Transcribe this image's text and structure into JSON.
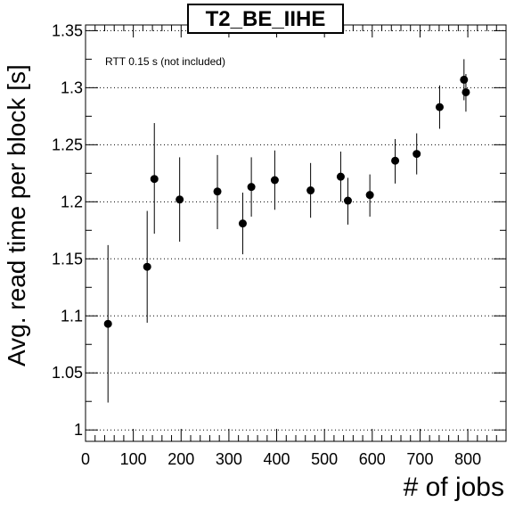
{
  "chart_data": {
    "type": "scatter",
    "title": "T2_BE_IIHE",
    "annotation": "RTT 0.15 s (not included)",
    "xlabel": "# of jobs",
    "ylabel": "Avg. read time per block [s]",
    "xlim": [
      0,
      880
    ],
    "ylim": [
      0.99,
      1.355
    ],
    "x_ticks": [
      0,
      100,
      200,
      300,
      400,
      500,
      600,
      700,
      800
    ],
    "y_ticks": [
      1,
      1.05,
      1.1,
      1.15,
      1.2,
      1.25,
      1.3,
      1.35
    ],
    "grid": "horizontal-dotted",
    "legend": "none",
    "marker_color": "#000000",
    "series": [
      {
        "points": [
          {
            "x": 47,
            "y": 1.093,
            "ylow": 1.024,
            "yhigh": 1.162
          },
          {
            "x": 129,
            "y": 1.143,
            "ylow": 1.094,
            "yhigh": 1.192
          },
          {
            "x": 144,
            "y": 1.22,
            "ylow": 1.172,
            "yhigh": 1.269
          },
          {
            "x": 197,
            "y": 1.202,
            "ylow": 1.165,
            "yhigh": 1.239
          },
          {
            "x": 276,
            "y": 1.209,
            "ylow": 1.176,
            "yhigh": 1.241
          },
          {
            "x": 329,
            "y": 1.181,
            "ylow": 1.154,
            "yhigh": 1.208
          },
          {
            "x": 347,
            "y": 1.213,
            "ylow": 1.187,
            "yhigh": 1.239
          },
          {
            "x": 396,
            "y": 1.219,
            "ylow": 1.193,
            "yhigh": 1.245
          },
          {
            "x": 471,
            "y": 1.21,
            "ylow": 1.186,
            "yhigh": 1.234
          },
          {
            "x": 534,
            "y": 1.222,
            "ylow": 1.2,
            "yhigh": 1.244
          },
          {
            "x": 549,
            "y": 1.201,
            "ylow": 1.18,
            "yhigh": 1.221
          },
          {
            "x": 595,
            "y": 1.206,
            "ylow": 1.187,
            "yhigh": 1.224
          },
          {
            "x": 648,
            "y": 1.236,
            "ylow": 1.216,
            "yhigh": 1.255
          },
          {
            "x": 693,
            "y": 1.242,
            "ylow": 1.224,
            "yhigh": 1.26
          },
          {
            "x": 741,
            "y": 1.283,
            "ylow": 1.264,
            "yhigh": 1.302
          },
          {
            "x": 792,
            "y": 1.307,
            "ylow": 1.289,
            "yhigh": 1.325
          },
          {
            "x": 796,
            "y": 1.296,
            "ylow": 1.279,
            "yhigh": 1.312
          }
        ]
      }
    ]
  }
}
